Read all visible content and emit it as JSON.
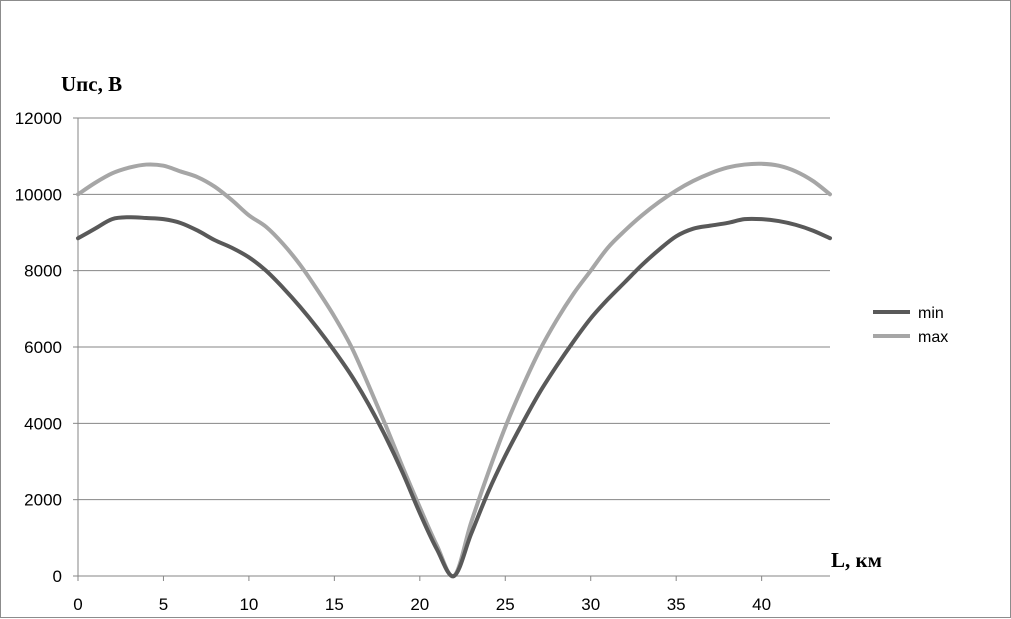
{
  "chart_data": {
    "type": "line",
    "title": "",
    "ylabel": "Uпс, В",
    "xlabel": "L, км",
    "xlim": [
      0,
      44
    ],
    "ylim": [
      0,
      12000
    ],
    "x_ticks": [
      0,
      5,
      10,
      15,
      20,
      25,
      30,
      35,
      40
    ],
    "y_ticks": [
      0,
      2000,
      4000,
      6000,
      8000,
      10000,
      12000
    ],
    "x_tick_labels": [
      "0",
      "5",
      "10",
      "15",
      "20",
      "25",
      "30",
      "35",
      "40"
    ],
    "y_tick_labels": [
      "0",
      "2000",
      "4000",
      "6000",
      "8000",
      "10000",
      "12000"
    ],
    "grid": "horizontal",
    "legend_position": "right",
    "series": [
      {
        "name": "min",
        "color": "#595959",
        "x": [
          0,
          1,
          2,
          3,
          4,
          5,
          6,
          7,
          8,
          9,
          10,
          11,
          12,
          13,
          14,
          15,
          16,
          17,
          18,
          19,
          20,
          21,
          22,
          23,
          24,
          25,
          26,
          27,
          28,
          29,
          30,
          31,
          32,
          33,
          34,
          35,
          36,
          37,
          38,
          39,
          40,
          41,
          42,
          43,
          44
        ],
        "values": [
          8850,
          9100,
          9350,
          9400,
          9380,
          9350,
          9250,
          9050,
          8800,
          8600,
          8350,
          8000,
          7550,
          7050,
          6500,
          5900,
          5250,
          4500,
          3650,
          2700,
          1650,
          700,
          0,
          1100,
          2200,
          3150,
          4000,
          4800,
          5500,
          6150,
          6750,
          7250,
          7700,
          8150,
          8550,
          8900,
          9100,
          9180,
          9250,
          9350,
          9350,
          9300,
          9200,
          9050,
          8850
        ]
      },
      {
        "name": "max",
        "color": "#a6a6a6",
        "x": [
          0,
          1,
          2,
          3,
          4,
          5,
          6,
          7,
          8,
          9,
          10,
          11,
          12,
          13,
          14,
          15,
          16,
          17,
          18,
          19,
          20,
          21,
          22,
          23,
          24,
          25,
          26,
          27,
          28,
          29,
          30,
          31,
          32,
          33,
          34,
          35,
          36,
          37,
          38,
          39,
          40,
          41,
          42,
          43,
          44
        ],
        "values": [
          10000,
          10300,
          10550,
          10700,
          10780,
          10750,
          10600,
          10450,
          10200,
          9850,
          9450,
          9150,
          8700,
          8150,
          7500,
          6800,
          6000,
          5000,
          3950,
          2850,
          1800,
          800,
          0,
          1400,
          2700,
          3900,
          4950,
          5900,
          6700,
          7400,
          8000,
          8600,
          9050,
          9450,
          9800,
          10100,
          10350,
          10550,
          10700,
          10780,
          10800,
          10750,
          10600,
          10350,
          10000
        ]
      }
    ]
  }
}
